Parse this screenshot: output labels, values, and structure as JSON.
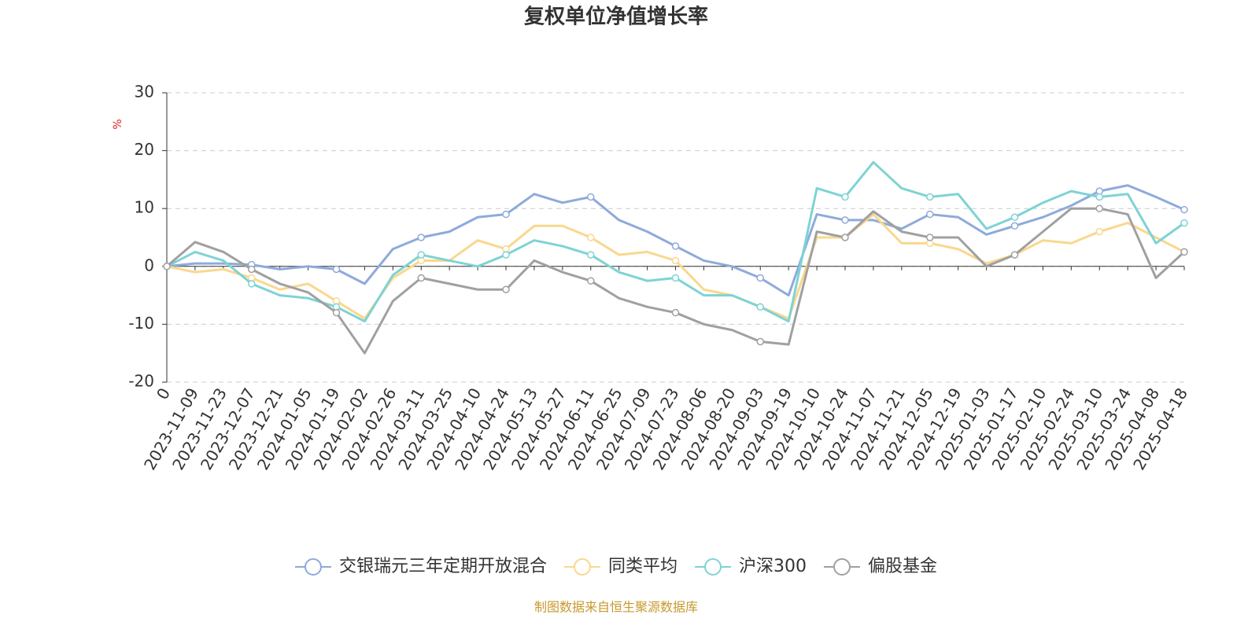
{
  "chart_data": {
    "type": "line",
    "title": "复权单位净值增长率",
    "y_label": "%",
    "source": "制图数据来自恒生聚源数据库",
    "categories": [
      "0",
      "2023-11-09",
      "2023-11-23",
      "2023-12-07",
      "2023-12-21",
      "2024-01-05",
      "2024-01-19",
      "2024-02-02",
      "2024-02-26",
      "2024-03-11",
      "2024-03-25",
      "2024-04-10",
      "2024-04-24",
      "2024-05-13",
      "2024-05-27",
      "2024-06-11",
      "2024-06-25",
      "2024-07-09",
      "2024-07-23",
      "2024-08-06",
      "2024-08-20",
      "2024-09-03",
      "2024-09-19",
      "2024-10-10",
      "2024-10-24",
      "2024-11-07",
      "2024-11-21",
      "2024-12-05",
      "2024-12-19",
      "2025-01-03",
      "2025-01-17",
      "2025-02-10",
      "2025-02-24",
      "2025-03-10",
      "2025-03-24",
      "2025-04-08",
      "2025-04-18"
    ],
    "series": [
      {
        "name": "交银瑞元三年定期开放混合",
        "color": "#8eaadb",
        "values": [
          0,
          0.5,
          0.5,
          0.3,
          -0.5,
          0,
          -0.5,
          -3,
          3,
          5,
          6,
          8.5,
          9,
          12.5,
          11,
          12,
          8,
          6,
          3.5,
          1,
          0,
          -2,
          -5,
          9,
          8,
          8,
          6.5,
          9,
          8.5,
          5.5,
          7,
          8.5,
          10.5,
          13,
          14,
          12,
          9.8
        ]
      },
      {
        "name": "同类平均",
        "color": "#f9d88d",
        "values": [
          0,
          -1,
          -0.5,
          -2,
          -4,
          -3,
          -6,
          -9,
          -2,
          1,
          1,
          4.5,
          3,
          7,
          7,
          5,
          2,
          2.5,
          1,
          -4,
          -5,
          -7,
          -9,
          5,
          5,
          9,
          4,
          4,
          3,
          0.5,
          2,
          4.5,
          4,
          6,
          7.5,
          5,
          2.5
        ]
      },
      {
        "name": "沪深300",
        "color": "#7ed3d4",
        "values": [
          0,
          2.5,
          1,
          -3,
          -5,
          -5.5,
          -7,
          -9.5,
          -1.5,
          2,
          1,
          0,
          2,
          4.5,
          3.5,
          2,
          -1,
          -2.5,
          -2,
          -5,
          -5,
          -7,
          -9.5,
          13.5,
          12,
          18,
          13.5,
          12,
          12.5,
          6.5,
          8.5,
          11,
          13,
          12,
          12.5,
          4,
          7.5
        ]
      },
      {
        "name": "偏股基金",
        "color": "#a0a0a0",
        "values": [
          0,
          4.2,
          2.5,
          -0.5,
          -3,
          -4.5,
          -8,
          -15,
          -6,
          -2,
          -3,
          -4,
          -4,
          1,
          -1,
          -2.5,
          -5.5,
          -7,
          -8,
          -10,
          -11,
          -13,
          -13.5,
          6,
          5,
          9.5,
          6,
          5,
          5,
          0,
          2,
          6,
          10,
          10,
          9,
          -2,
          2.5
        ]
      }
    ],
    "ylim": [
      -20,
      30
    ],
    "yticks": [
      -20,
      -10,
      0,
      10,
      20,
      30
    ],
    "grid": true
  }
}
